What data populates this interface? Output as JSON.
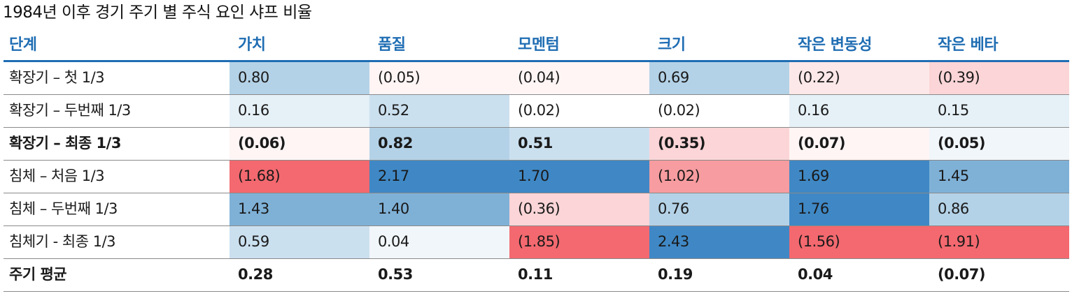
{
  "title": "1984년 이후 경기 주기 별 주식 요인 샤프 비율",
  "table": {
    "headers": [
      "단계",
      "가치",
      "품질",
      "모멘텀",
      "크기",
      "작은 변동성",
      "작은 베타"
    ],
    "rows": [
      {
        "label": "확장기 – 첫 1/3",
        "bold": false,
        "values": [
          "0.80",
          "(0.05)",
          "(0.04)",
          "0.69",
          "(0.22)",
          "(0.39)"
        ],
        "colors": [
          "#b4d2e7",
          "#fff5f5",
          "#fff5f5",
          "#b4d2e7",
          "#fde8e9",
          "#fbd5d7"
        ]
      },
      {
        "label": "확장기 – 두번째 1/3",
        "bold": false,
        "values": [
          "0.16",
          "0.52",
          "(0.02)",
          "(0.02)",
          "0.16",
          "0.15"
        ],
        "colors": [
          "#e5f0f7",
          "#cbe0ef",
          "#ffffff",
          "#ffffff",
          "#e5f0f7",
          "#e5f0f7"
        ]
      },
      {
        "label": "확장기 – 최종 1/3",
        "bold": true,
        "values": [
          "(0.06)",
          "0.82",
          "0.51",
          "(0.35)",
          "(0.07)",
          "(0.05)"
        ],
        "colors": [
          "#fff5f5",
          "#b4d2e7",
          "#cbe0ef",
          "#fbd5d7",
          "#fff5f5",
          "#f1f6fa"
        ]
      },
      {
        "label": "침체 – 처음 1/3",
        "bold": false,
        "values": [
          "(1.68)",
          "2.17",
          "1.70",
          "(1.02)",
          "1.69",
          "1.45"
        ],
        "colors": [
          "#f3696f",
          "#3f88c5",
          "#3f88c5",
          "#f79ca0",
          "#3f88c5",
          "#7fb1d7"
        ]
      },
      {
        "label": "침체 – 두번째 1/3",
        "bold": false,
        "values": [
          "1.43",
          "1.40",
          "(0.36)",
          "0.76",
          "1.76",
          "0.86"
        ],
        "colors": [
          "#7fb1d7",
          "#7fb1d7",
          "#fbd5d7",
          "#b4d2e7",
          "#3f88c5",
          "#b4d2e7"
        ]
      },
      {
        "label": "침체기 - 최종 1/3",
        "bold": false,
        "values": [
          "0.59",
          "0.04",
          "(1.85)",
          "2.43",
          "(1.56)",
          "(1.91)"
        ],
        "colors": [
          "#cbe0ef",
          "#f1f6fa",
          "#f3696f",
          "#3f88c5",
          "#f3696f",
          "#f3696f"
        ]
      },
      {
        "label": "주기 평균",
        "bold": true,
        "values": [
          "0.28",
          "0.53",
          "0.11",
          "0.19",
          "0.04",
          "(0.07)"
        ],
        "colors": [
          "#ffffff",
          "#ffffff",
          "#ffffff",
          "#ffffff",
          "#ffffff",
          "#ffffff"
        ]
      }
    ]
  },
  "colors": {
    "header_text": "#1f6db3",
    "header_rule": "#1f6db3",
    "row_rule": "#8a8a8a",
    "positive_strong": "#3f88c5",
    "negative_strong": "#f3696f"
  }
}
